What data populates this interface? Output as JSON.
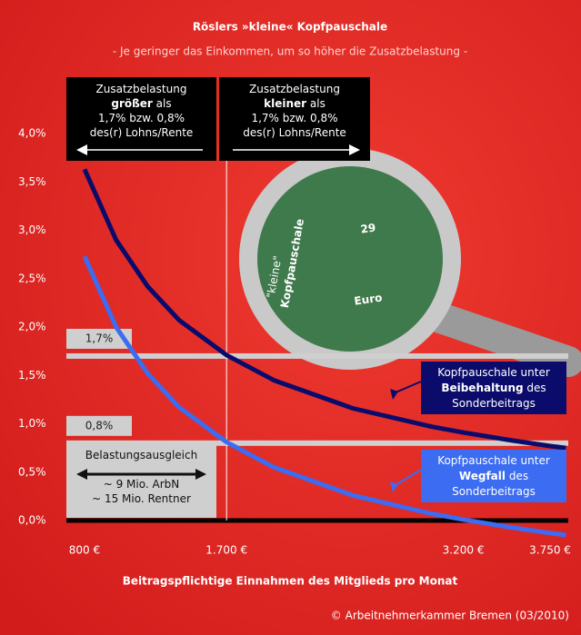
{
  "chart_data": {
    "type": "line",
    "title": "Röslers »kleine« Kopfpauschale",
    "subtitle": "- Je geringer das Einkommen, um so höher die Zusatzbelastung -",
    "x_label": "Beitragspflichtige Einnahmen des Mitglieds pro Monat",
    "source": "© Arbeitnehmerkammer Bremen (03/2010)",
    "x": [
      800,
      1000,
      1200,
      1400,
      1700,
      2000,
      2500,
      3000,
      3200,
      3500,
      3750,
      3850
    ],
    "series": [
      {
        "name": [
          [
            {
              "text": "Kopfpauschale unter"
            }
          ],
          [
            {
              "text": "Beibehaltung",
              "bold": true
            },
            {
              "text": " des"
            }
          ],
          [
            {
              "text": "Sonderbeitrags"
            }
          ]
        ],
        "color": "#0b0b6b",
        "values": [
          3.63,
          2.9,
          2.42,
          2.07,
          1.71,
          1.45,
          1.16,
          0.97,
          0.91,
          0.83,
          0.77,
          0.75
        ]
      },
      {
        "name": [
          [
            {
              "text": "Kopfpauschale unter"
            }
          ],
          [
            {
              "text": "Wegfall",
              "bold": true
            },
            {
              "text": " des"
            }
          ],
          [
            {
              "text": "Sonderbeitrags"
            }
          ]
        ],
        "color": "#3b6cf2",
        "values": [
          2.73,
          2.0,
          1.52,
          1.17,
          0.81,
          0.55,
          0.26,
          0.07,
          0.01,
          -0.07,
          -0.13,
          -0.15
        ]
      }
    ],
    "xlim": [
      685,
      3865
    ],
    "xticks": [
      {
        "value": 800,
        "label": "800 €"
      },
      {
        "value": 1700,
        "label": "1.700 €"
      },
      {
        "value": 3200,
        "label": "3.200 €"
      },
      {
        "value": 3750,
        "label": "3.750 €"
      }
    ],
    "ylim": [
      0,
      4
    ],
    "yticks": [
      {
        "value": 0,
        "label": "0,0%"
      },
      {
        "value": 0.5,
        "label": "0,5%"
      },
      {
        "value": 1,
        "label": "1,0%"
      },
      {
        "value": 1.5,
        "label": "1,5%"
      },
      {
        "value": 2,
        "label": "2,0%"
      },
      {
        "value": 2.5,
        "label": "2,5%"
      },
      {
        "value": 3,
        "label": "3,0%"
      },
      {
        "value": 3.5,
        "label": "3,5%"
      },
      {
        "value": 4,
        "label": "4,0%"
      }
    ],
    "reference_lines": [
      {
        "value": 1.7,
        "label": "1,7%"
      },
      {
        "value": 0.8,
        "label": "0,8%"
      }
    ],
    "vertical_line": 1700,
    "annotations": [
      {
        "lines": [
          [
            {
              "text": "Zusatzbelastung"
            }
          ],
          [
            {
              "text": "größer",
              "bold": true
            },
            {
              "text": " als"
            }
          ],
          [
            {
              "text": "1,7% bzw. 0,8%"
            }
          ],
          [
            {
              "text": "des(r) Lohns/Rente"
            }
          ]
        ]
      },
      {
        "lines": [
          [
            {
              "text": "Zusatzbelastung"
            }
          ],
          [
            {
              "text": "kleiner",
              "bold": true
            },
            {
              "text": " als"
            }
          ],
          [
            {
              "text": "1,7% bzw. 0,8%"
            }
          ],
          [
            {
              "text": "des(r) Lohns/Rente"
            }
          ]
        ]
      },
      {
        "lines": [
          [
            {
              "text": "Belastungsausgleich"
            }
          ],
          [
            {
              "text": ""
            }
          ],
          [
            {
              "text": "~ 9 Mio. ArbN"
            }
          ],
          [
            {
              "text": "~ 15 Mio. Rentner"
            }
          ]
        ]
      }
    ],
    "illustration": [
      "\"kleine\"",
      "Kopfpauschale",
      "29",
      "Euro"
    ]
  }
}
